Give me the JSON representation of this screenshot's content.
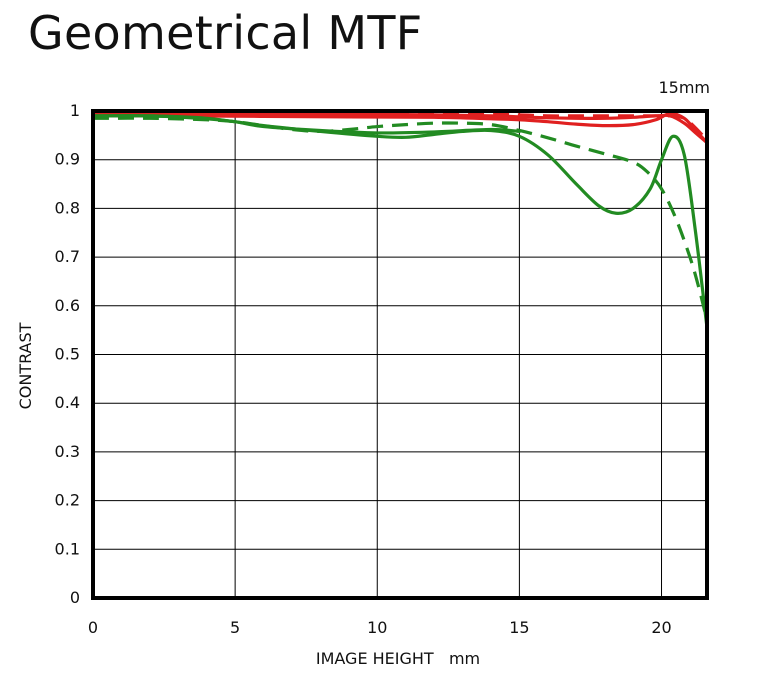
{
  "title": "Geometrical MTF",
  "chart_data": {
    "type": "line",
    "title": "Geometrical MTF",
    "subtitle": "15mm",
    "xlabel": "IMAGE HEIGHT   mm",
    "ylabel": "CONTRAST",
    "xlim": [
      0,
      21.6
    ],
    "ylim": [
      0,
      1
    ],
    "x_ticks": [
      0,
      5,
      10,
      15,
      20
    ],
    "y_ticks": [
      0,
      0.1,
      0.2,
      0.3,
      0.4,
      0.5,
      0.6,
      0.7,
      0.8,
      0.9,
      1
    ],
    "y_tick_labels": [
      "0",
      "0.1",
      "0.2",
      "0.3",
      "0.4",
      "0.5",
      "0.6",
      "0.7",
      "0.8",
      "0.9",
      "1"
    ],
    "grid": true,
    "colors": {
      "red": "#e02020",
      "green": "#228b22",
      "frame": "#000000",
      "grid": "#000000"
    },
    "series": [
      {
        "color": "#e02020",
        "style": "solid",
        "x": [
          0,
          2,
          4,
          6,
          8,
          10,
          12,
          14,
          15,
          16,
          17,
          18,
          19,
          19.8,
          20.3,
          20.8,
          21.2,
          21.6
        ],
        "y": [
          0.995,
          0.995,
          0.995,
          0.994,
          0.993,
          0.993,
          0.992,
          0.99,
          0.988,
          0.986,
          0.985,
          0.985,
          0.987,
          0.99,
          0.99,
          0.975,
          0.955,
          0.935
        ]
      },
      {
        "color": "#e02020",
        "style": "dashed",
        "x": [
          0,
          2,
          4,
          6,
          8,
          10,
          12,
          14,
          15,
          16,
          17,
          18,
          19,
          19.8,
          20.3,
          20.8,
          21.2,
          21.6
        ],
        "y": [
          0.995,
          0.995,
          0.995,
          0.995,
          0.995,
          0.995,
          0.994,
          0.993,
          0.992,
          0.99,
          0.99,
          0.99,
          0.99,
          0.99,
          0.99,
          0.985,
          0.965,
          0.94
        ]
      },
      {
        "color": "#e02020",
        "style": "solid",
        "x": [
          0,
          3,
          6,
          9,
          12,
          14,
          15,
          16,
          17,
          18,
          19,
          19.8,
          20.3,
          20.8,
          21.2,
          21.6
        ],
        "y": [
          0.99,
          0.99,
          0.989,
          0.988,
          0.987,
          0.984,
          0.982,
          0.978,
          0.973,
          0.97,
          0.972,
          0.982,
          0.995,
          0.985,
          0.96,
          0.935
        ]
      },
      {
        "color": "#228b22",
        "style": "solid",
        "x": [
          0,
          2,
          4,
          6,
          8,
          10,
          11,
          12,
          13,
          14,
          15,
          16,
          17,
          17.8,
          18.4,
          19,
          19.6,
          20,
          20.4,
          20.8,
          21.2,
          21.6
        ],
        "y": [
          0.99,
          0.99,
          0.985,
          0.97,
          0.958,
          0.948,
          0.946,
          0.952,
          0.958,
          0.96,
          0.948,
          0.91,
          0.85,
          0.805,
          0.79,
          0.8,
          0.84,
          0.9,
          0.948,
          0.91,
          0.75,
          0.555
        ]
      },
      {
        "color": "#228b22",
        "style": "dashed",
        "x": [
          0,
          2,
          4,
          5,
          6,
          7,
          8,
          9,
          10,
          11,
          12,
          13,
          14,
          15,
          16,
          17,
          18,
          19,
          19.5,
          20,
          20.5,
          21,
          21.3,
          21.6
        ],
        "y": [
          0.985,
          0.985,
          0.982,
          0.978,
          0.97,
          0.962,
          0.958,
          0.962,
          0.968,
          0.972,
          0.975,
          0.975,
          0.972,
          0.96,
          0.945,
          0.928,
          0.912,
          0.895,
          0.875,
          0.84,
          0.78,
          0.7,
          0.64,
          0.57
        ]
      },
      {
        "color": "#228b22",
        "style": "solid",
        "x": [
          0,
          2,
          4,
          5,
          6,
          8,
          10,
          12,
          14,
          15
        ],
        "y": [
          0.99,
          0.99,
          0.984,
          0.978,
          0.968,
          0.96,
          0.955,
          0.957,
          0.962,
          0.958
        ]
      }
    ]
  }
}
